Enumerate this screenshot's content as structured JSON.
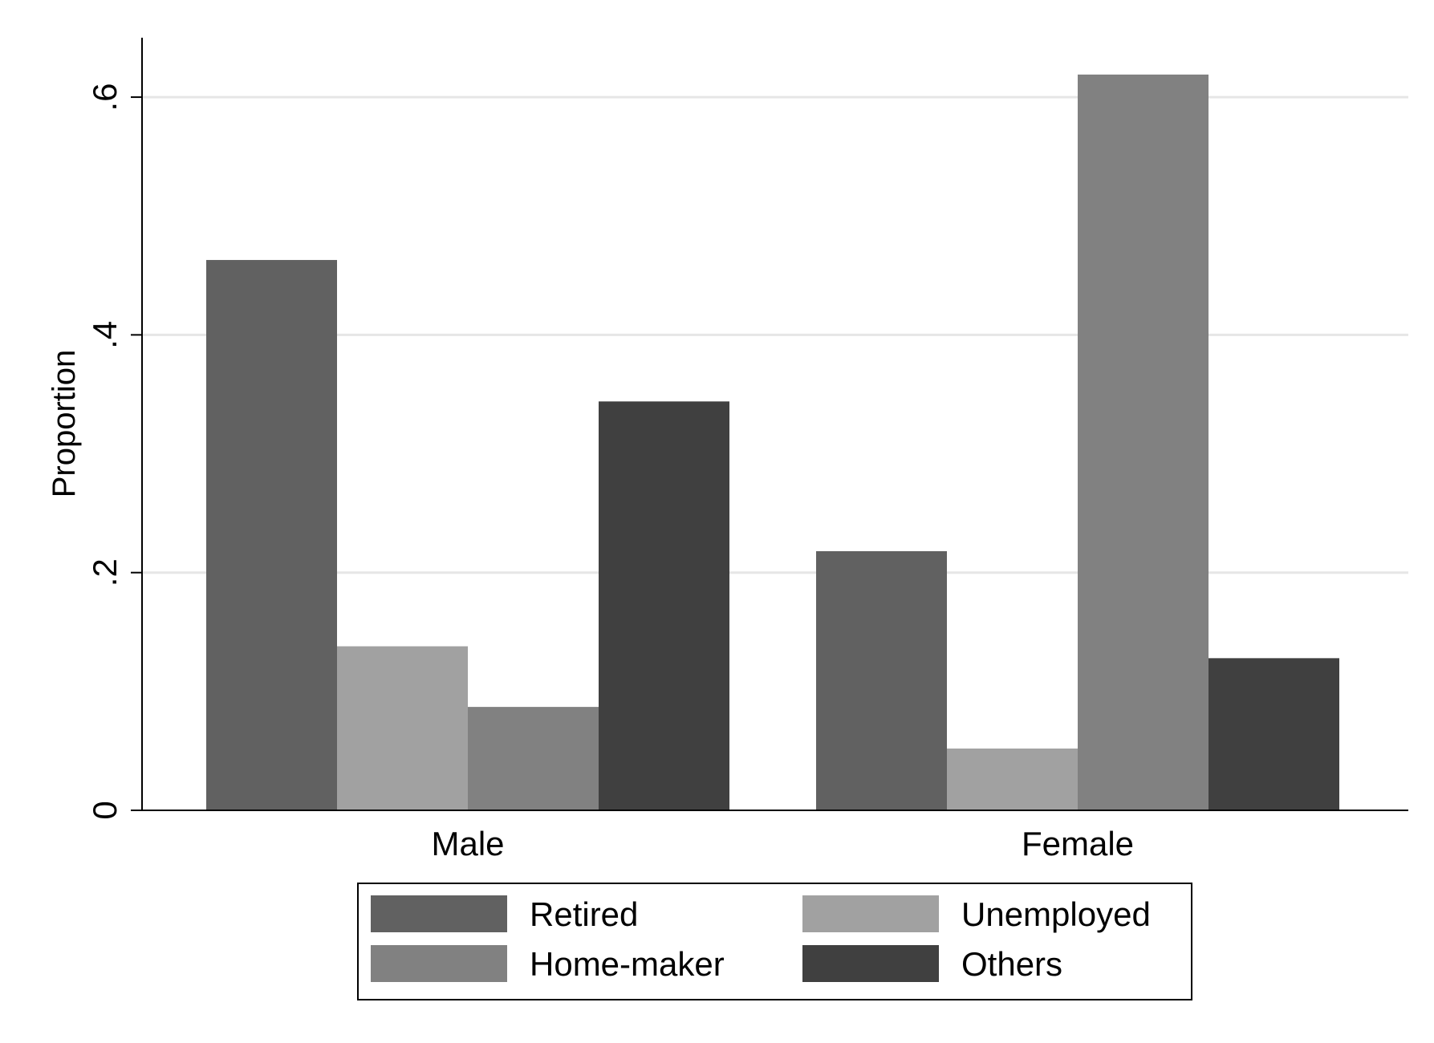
{
  "chart_data": {
    "type": "bar",
    "title": "",
    "xlabel": "",
    "ylabel": "Proportion",
    "ylim": [
      0,
      0.65
    ],
    "yticks": [
      {
        "value": 0,
        "label": "0"
      },
      {
        "value": 0.2,
        "label": ".2"
      },
      {
        "value": 0.4,
        "label": ".4"
      },
      {
        "value": 0.6,
        "label": ".6"
      }
    ],
    "grid": true,
    "legend_position": "bottom",
    "categories": [
      "Male",
      "Female"
    ],
    "series": [
      {
        "name": "Retired",
        "color": "#616161",
        "values": [
          0.463,
          0.218
        ]
      },
      {
        "name": "Unemployed",
        "color": "#a1a1a1",
        "values": [
          0.138,
          0.052
        ]
      },
      {
        "name": "Home-maker",
        "color": "#818181",
        "values": [
          0.087,
          0.619
        ]
      },
      {
        "name": "Others",
        "color": "#404040",
        "values": [
          0.344,
          0.128
        ]
      }
    ],
    "legend_order": [
      "Retired",
      "Unemployed",
      "Home-maker",
      "Others"
    ]
  }
}
